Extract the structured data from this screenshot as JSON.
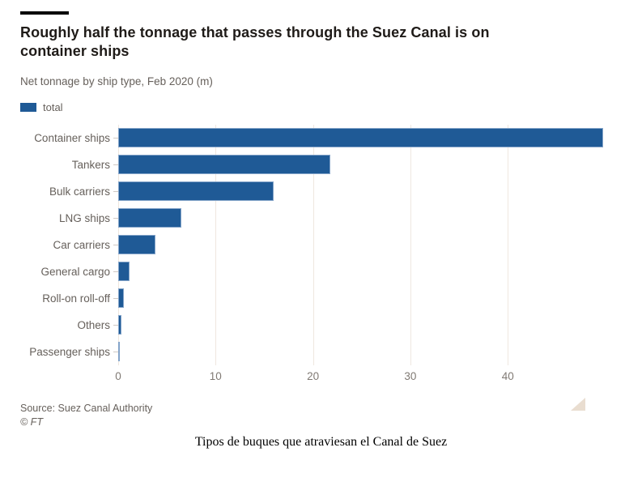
{
  "header": {
    "title": "Roughly half the tonnage that passes through the Suez Canal is on container ships",
    "subtitle": "Net tonnage by ship type, Feb 2020 (m)"
  },
  "legend": {
    "label": "total",
    "swatch_color": "#1f5a96"
  },
  "chart_data": {
    "type": "bar",
    "orientation": "horizontal",
    "title": "Roughly half the tonnage that passes through the Suez Canal is on container ships",
    "subtitle": "Net tonnage by ship type, Feb 2020 (m)",
    "series_name": "total",
    "categories": [
      "Container ships",
      "Tankers",
      "Bulk carriers",
      "LNG ships",
      "Car carriers",
      "General cargo",
      "Roll-on roll-off",
      "Others",
      "Passenger ships"
    ],
    "values": [
      49.8,
      21.8,
      16.0,
      6.5,
      3.8,
      1.2,
      0.6,
      0.3,
      0.1
    ],
    "xlabel": "",
    "ylabel": "",
    "xticks": [
      0,
      10,
      20,
      30,
      40
    ],
    "xlim": [
      0,
      51.7
    ],
    "bar_color": "#1f5a96",
    "grid": true,
    "gridline_color": "#efe7e0",
    "legend_position": "top-left"
  },
  "footer": {
    "source": "Source: Suez Canal Authority",
    "copyright": "© FT"
  },
  "caption": "Tipos de buques que atraviesan el Canal de Suez"
}
